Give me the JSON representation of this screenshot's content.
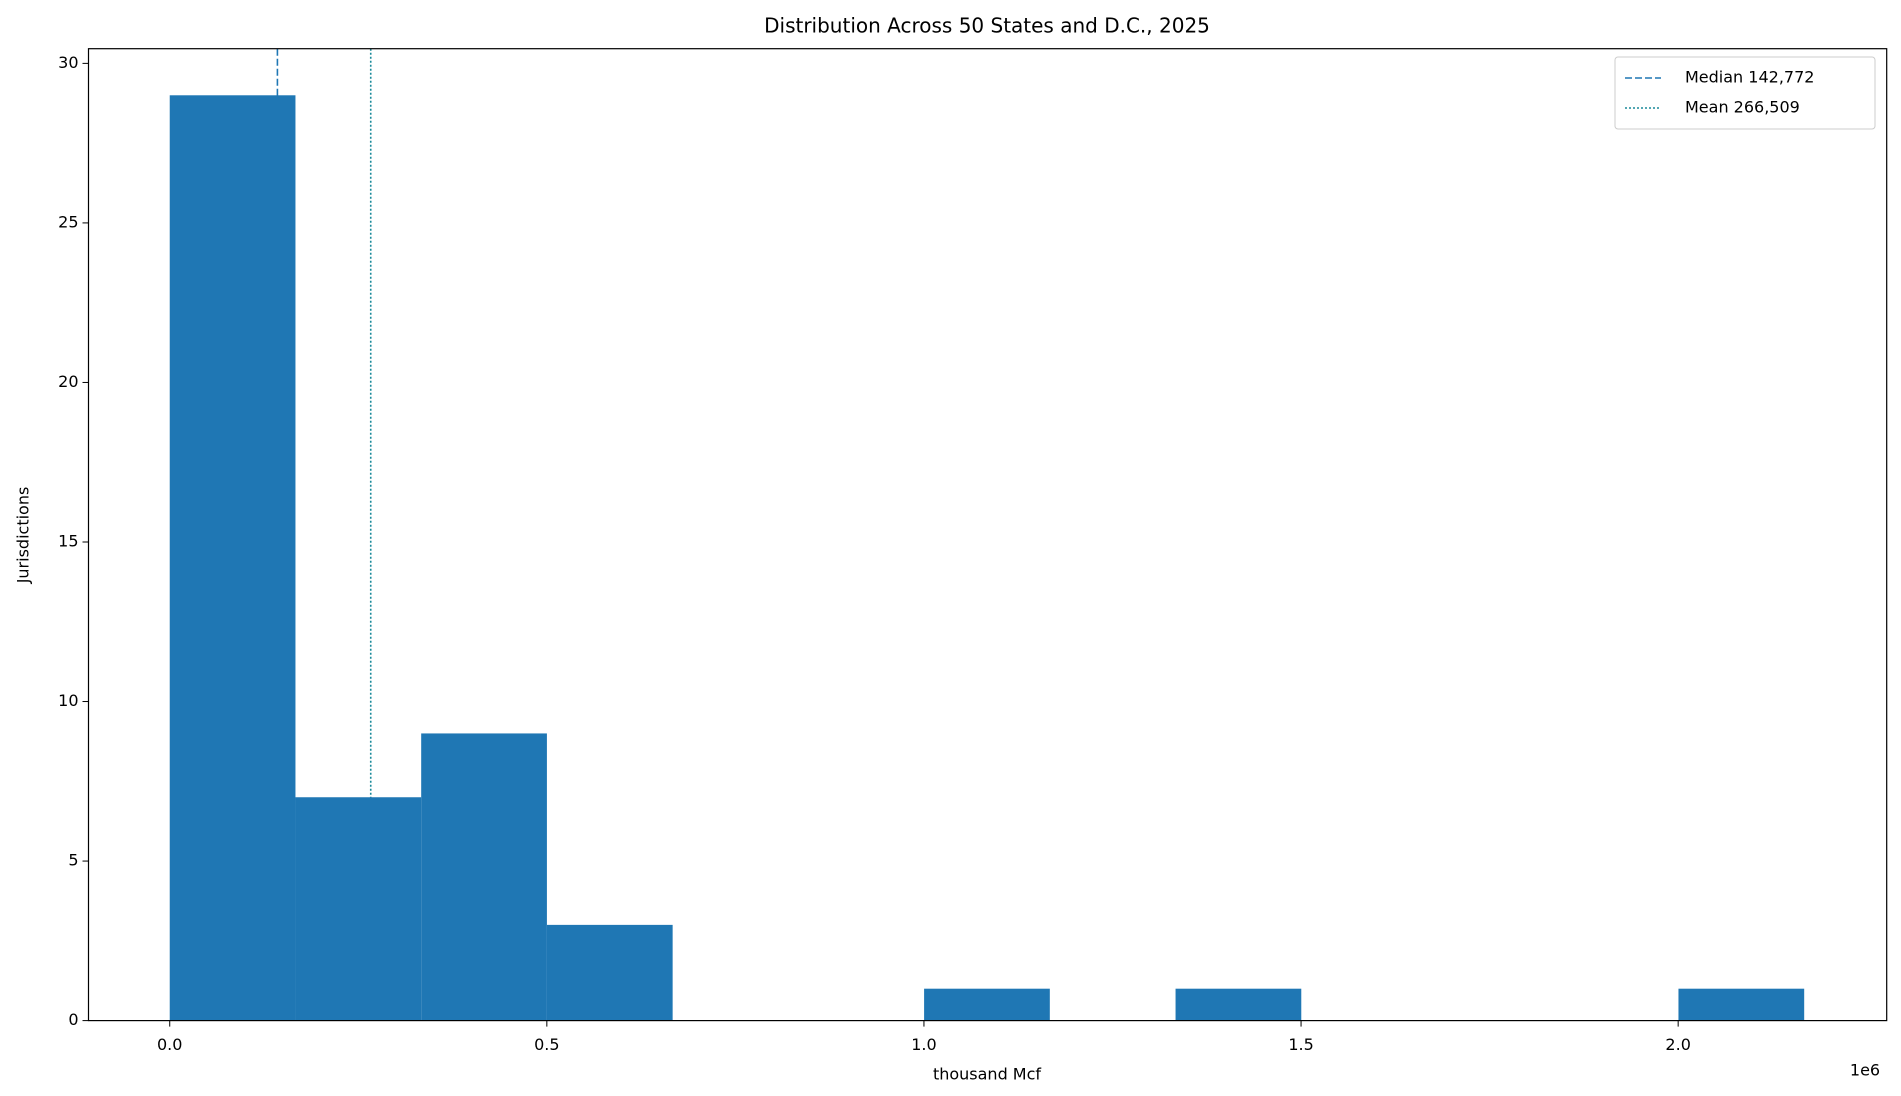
{
  "chart_data": {
    "type": "histogram",
    "title": "Distribution Across 50 States and D.C., 2025",
    "xlabel": "thousand Mcf",
    "ylabel": "Jurisdictions",
    "x_offset_label": "1e6",
    "bins": [
      0,
      166700,
      333400,
      500100,
      666800,
      833500,
      1000200,
      1166900,
      1333600,
      1500300,
      1667000,
      1833700,
      2000400,
      2167100
    ],
    "counts": [
      29,
      7,
      9,
      3,
      0,
      0,
      1,
      0,
      1,
      0,
      0,
      0,
      1
    ],
    "color": "#1f77b4",
    "xlim": [
      -107700,
      2276500
    ],
    "ylim": [
      0,
      30.46
    ],
    "xticks": [
      {
        "value": 0,
        "label": "0.0"
      },
      {
        "value": 500000,
        "label": "0.5"
      },
      {
        "value": 1000000,
        "label": "1.0"
      },
      {
        "value": 1500000,
        "label": "1.5"
      },
      {
        "value": 2000000,
        "label": "2.0"
      }
    ],
    "yticks": [
      0,
      5,
      10,
      15,
      20,
      25,
      30
    ],
    "reference_lines": [
      {
        "name": "Median 142,772",
        "value": 142772,
        "style": "dashed",
        "color": "#1f77b4"
      },
      {
        "name": "Mean 266,509",
        "value": 266509,
        "style": "dotted",
        "color": "#1a8a9a"
      }
    ],
    "legend": "upper right"
  }
}
